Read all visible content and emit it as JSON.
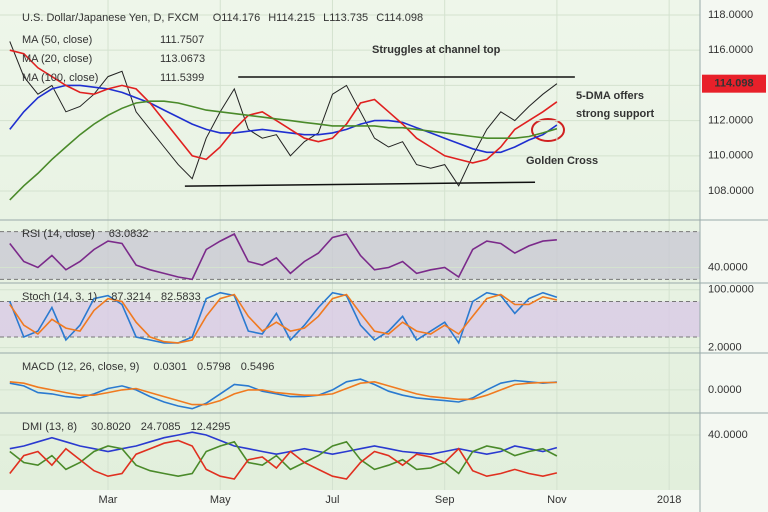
{
  "chart_data": [
    {
      "type": "line",
      "title": "U.S. Dollar/Japanese Yen, D, FXCM",
      "ohlc": [
        "O114.176",
        "H114.215",
        "L113.735",
        "C114.098"
      ],
      "x": [
        1.25,
        1.5,
        1.75,
        2,
        2.25,
        2.5,
        2.75,
        3,
        3.25,
        3.5,
        3.75,
        4,
        4.25,
        4.5,
        4.75,
        5,
        5.25,
        5.5,
        5.75,
        6,
        6.25,
        6.5,
        6.75,
        7,
        7.25,
        7.5,
        7.75,
        8,
        8.25,
        8.5,
        8.75,
        9,
        9.25,
        9.5,
        9.75,
        10,
        10.25,
        10.5,
        10.75,
        11
      ],
      "xlim": [
        1.075,
        13.55
      ],
      "xticks": [
        {
          "value": 3,
          "label": "Mar"
        },
        {
          "value": 5,
          "label": "May"
        },
        {
          "value": 7,
          "label": "Jul"
        },
        {
          "value": 9,
          "label": "Sep"
        },
        {
          "value": 11,
          "label": "Nov"
        },
        {
          "value": 13,
          "label": "2018"
        }
      ],
      "ylim": [
        106.64,
        118.85
      ],
      "yticks": [
        {
          "value": 108,
          "label": "108.0000"
        },
        {
          "value": 110,
          "label": "110.0000"
        },
        {
          "value": 112,
          "label": "112.0000"
        },
        {
          "value": 114,
          "label": "114.0000"
        },
        {
          "value": 116,
          "label": "116.0000"
        },
        {
          "value": 118,
          "label": "118.0000"
        }
      ],
      "series": [
        {
          "name": "Close",
          "color": "#222222",
          "values": [
            116.5,
            114.5,
            113.5,
            114,
            112.5,
            112.8,
            113.5,
            114.5,
            114.8,
            112.5,
            111.5,
            110.5,
            109.5,
            108.7,
            111,
            112.5,
            113.8,
            111.5,
            111,
            111.2,
            110,
            110.8,
            111.3,
            113.5,
            114,
            112.5,
            111,
            110.5,
            110.8,
            109.5,
            109.3,
            109.5,
            108.3,
            110,
            111.5,
            112.5,
            112,
            112.8,
            113.5,
            114.098
          ]
        },
        {
          "name": "MA (50, close)",
          "color": "#1f2fd0",
          "legend_value": "111.7507",
          "values": [
            111.5,
            112.5,
            113.3,
            113.8,
            114,
            114,
            113.9,
            113.8,
            113.6,
            113.3,
            113,
            112.6,
            112.2,
            111.8,
            111.5,
            111.3,
            111.3,
            111.4,
            111.5,
            111.4,
            111.3,
            111.2,
            111.2,
            111.3,
            111.5,
            111.8,
            112,
            112,
            111.9,
            111.6,
            111.3,
            111,
            110.7,
            110.4,
            110.2,
            110.2,
            110.5,
            110.9,
            111.2,
            111.7507
          ]
        },
        {
          "name": "MA (20, close)",
          "color": "#e02020",
          "legend_value": "113.0673",
          "values": [
            116,
            115.8,
            115,
            114.5,
            114,
            113.6,
            113.5,
            113.8,
            114,
            113.8,
            113,
            112,
            111,
            110,
            109.8,
            110.5,
            111.5,
            112.3,
            112.5,
            112,
            111.5,
            111,
            110.8,
            111,
            111.8,
            113,
            113.2,
            112.5,
            111.8,
            111,
            110.5,
            110,
            109.8,
            109.6,
            109.8,
            110.5,
            111.5,
            112,
            112.5,
            113.0673
          ]
        },
        {
          "name": "MA (100, close)",
          "color": "#4a8a2a",
          "legend_value": "111.5399",
          "values": [
            107.5,
            108.3,
            109,
            109.8,
            110.5,
            111.2,
            111.8,
            112.3,
            112.7,
            113,
            113.1,
            113.1,
            113,
            112.8,
            112.6,
            112.5,
            112.4,
            112.3,
            112.2,
            112.1,
            112,
            111.9,
            111.8,
            111.7,
            111.7,
            111.7,
            111.7,
            111.6,
            111.6,
            111.5,
            111.4,
            111.3,
            111.2,
            111.1,
            111,
            111,
            111,
            111.1,
            111.3,
            111.5399
          ]
        }
      ],
      "trendlines": [
        {
          "x": [
            5.32,
            11.32
          ],
          "values": [
            114.48,
            114.48
          ]
        },
        {
          "x": [
            4.37,
            10.61
          ],
          "values": [
            108.28,
            108.5
          ]
        }
      ],
      "price_label": 114.098,
      "annotations": [
        "Struggles at channel top",
        "5-DMA offers strong support",
        "Golden Cross"
      ]
    },
    {
      "type": "line",
      "title": "RSI (14, close)",
      "x": [
        1.25,
        1.5,
        1.75,
        2,
        2.25,
        2.5,
        2.75,
        3,
        3.25,
        3.5,
        3.75,
        4,
        4.25,
        4.5,
        4.75,
        5,
        5.25,
        5.5,
        5.75,
        6,
        6.25,
        6.5,
        6.75,
        7,
        7.25,
        7.5,
        7.75,
        8,
        8.25,
        8.5,
        8.75,
        9,
        9.25,
        9.5,
        9.75,
        10,
        10.25,
        10.5,
        10.75,
        11
      ],
      "ylim": [
        27,
        78
      ],
      "yticks": [
        {
          "value": 40,
          "label": "40.0000"
        }
      ],
      "levels": [
        30,
        70
      ],
      "band_color": "#c9c9d3",
      "series": [
        {
          "name": "RSI",
          "color": "#7b2a8a",
          "legend_value": "63.0832",
          "values": [
            60,
            45,
            40,
            50,
            38,
            45,
            55,
            62,
            60,
            42,
            38,
            35,
            32,
            30,
            55,
            62,
            68,
            45,
            42,
            48,
            35,
            45,
            52,
            65,
            68,
            50,
            38,
            40,
            45,
            35,
            38,
            40,
            32,
            55,
            62,
            60,
            52,
            58,
            62,
            63.0832
          ]
        }
      ]
    },
    {
      "type": "line",
      "title": "Stoch (14, 3, 1)",
      "x": [
        1.25,
        1.5,
        1.75,
        2,
        2.25,
        2.5,
        2.75,
        3,
        3.25,
        3.5,
        3.75,
        4,
        4.25,
        4.5,
        4.75,
        5,
        5.25,
        5.5,
        5.75,
        6,
        6.25,
        6.5,
        6.75,
        7,
        7.25,
        7.5,
        7.75,
        8,
        8.25,
        8.5,
        8.75,
        9,
        9.25,
        9.5,
        9.75,
        10,
        10.25,
        10.5,
        10.75,
        11
      ],
      "ylim": [
        -2,
        108
      ],
      "yticks": [
        {
          "value": 2,
          "label": "2.0000"
        },
        {
          "value": 100,
          "label": "100.0000"
        }
      ],
      "levels": [
        20,
        80
      ],
      "band_color": "#d9c9e6",
      "series": [
        {
          "name": "%K",
          "color": "#2a7ad0",
          "legend_value": "87.3214",
          "values": [
            80,
            20,
            30,
            70,
            15,
            40,
            85,
            90,
            75,
            20,
            15,
            10,
            10,
            20,
            85,
            95,
            90,
            30,
            25,
            60,
            15,
            40,
            70,
            95,
            90,
            40,
            15,
            30,
            55,
            15,
            30,
            45,
            10,
            80,
            95,
            90,
            60,
            85,
            95,
            87.3214
          ]
        },
        {
          "name": "%D",
          "color": "#f07a20",
          "legend_value": "82.5833",
          "values": [
            75,
            40,
            25,
            50,
            35,
            30,
            65,
            85,
            80,
            45,
            20,
            12,
            10,
            15,
            55,
            85,
            92,
            55,
            30,
            45,
            30,
            35,
            55,
            85,
            92,
            60,
            30,
            25,
            45,
            30,
            25,
            40,
            25,
            55,
            85,
            92,
            75,
            75,
            88,
            82.5833
          ]
        }
      ]
    },
    {
      "type": "line",
      "title": "MACD (12, 26, close, 9)",
      "x": [
        1.25,
        1.5,
        1.75,
        2,
        2.25,
        2.5,
        2.75,
        3,
        3.25,
        3.5,
        3.75,
        4,
        4.25,
        4.5,
        4.75,
        5,
        5.25,
        5.5,
        5.75,
        6,
        6.25,
        6.5,
        6.75,
        7,
        7.25,
        7.5,
        7.75,
        8,
        8.25,
        8.5,
        8.75,
        9,
        9.25,
        9.5,
        9.75,
        10,
        10.25,
        10.5,
        10.75,
        11
      ],
      "ylim": [
        -1.5,
        2.6
      ],
      "yticks": [
        {
          "value": 0,
          "label": "0.0000"
        }
      ],
      "header_values": [
        {
          "text": "0.0301",
          "color": "#c0203a"
        }
      ],
      "series": [
        {
          "name": "MACD",
          "color": "#2a7ad0",
          "legend_value": "0.5798",
          "values": [
            0.5,
            0.3,
            -0.2,
            -0.3,
            -0.5,
            -0.6,
            -0.3,
            0.1,
            0.3,
            0,
            -0.5,
            -0.9,
            -1.2,
            -1.4,
            -1,
            -0.3,
            0.4,
            0.3,
            -0.1,
            -0.3,
            -0.5,
            -0.5,
            -0.4,
            0,
            0.6,
            0.8,
            0.4,
            -0.1,
            -0.4,
            -0.6,
            -0.7,
            -0.8,
            -0.9,
            -0.6,
            0,
            0.5,
            0.7,
            0.6,
            0.5,
            0.5798
          ]
        },
        {
          "name": "Signal",
          "color": "#f07a20",
          "legend_value": "0.5496",
          "values": [
            0.6,
            0.5,
            0.2,
            0,
            -0.2,
            -0.4,
            -0.4,
            -0.2,
            0,
            0.1,
            -0.2,
            -0.5,
            -0.8,
            -1.1,
            -1.1,
            -0.8,
            -0.3,
            0,
            0,
            -0.2,
            -0.3,
            -0.4,
            -0.4,
            -0.3,
            0.1,
            0.5,
            0.6,
            0.3,
            0,
            -0.3,
            -0.5,
            -0.6,
            -0.7,
            -0.7,
            -0.4,
            0,
            0.4,
            0.5,
            0.55,
            0.5496
          ]
        }
      ]
    },
    {
      "type": "line",
      "title": "DMI (13, 8)",
      "x": [
        1.25,
        1.5,
        1.75,
        2,
        2.25,
        2.5,
        2.75,
        3,
        3.25,
        3.5,
        3.75,
        4,
        4.25,
        4.5,
        4.75,
        5,
        5.25,
        5.5,
        5.75,
        6,
        6.25,
        6.5,
        6.75,
        7,
        7.25,
        7.5,
        7.75,
        8,
        8.25,
        8.5,
        8.75,
        9,
        9.25,
        9.5,
        9.75,
        10,
        10.25,
        10.5,
        10.75,
        11
      ],
      "ylim": [
        0,
        54.5
      ],
      "yticks": [
        {
          "value": 40,
          "label": "40.0000"
        }
      ],
      "series": [
        {
          "name": "ADX",
          "color": "#2a3ad0",
          "legend_value": "30.8020",
          "values": [
            30,
            32,
            35,
            38,
            35,
            32,
            30,
            28,
            30,
            32,
            35,
            38,
            40,
            42,
            40,
            36,
            32,
            30,
            28,
            26,
            28,
            30,
            28,
            26,
            28,
            30,
            32,
            30,
            28,
            27,
            26,
            28,
            30,
            28,
            26,
            28,
            32,
            30,
            28,
            30.802
          ]
        },
        {
          "name": "+DI",
          "color": "#4a8a2a",
          "legend_value": "24.7085",
          "values": [
            28,
            20,
            18,
            25,
            15,
            20,
            28,
            32,
            30,
            18,
            14,
            12,
            10,
            12,
            28,
            32,
            35,
            20,
            18,
            25,
            15,
            20,
            25,
            32,
            35,
            22,
            15,
            18,
            22,
            15,
            16,
            20,
            12,
            28,
            32,
            30,
            25,
            28,
            30,
            24.7085
          ]
        },
        {
          "name": "-DI",
          "color": "#e03020",
          "legend_value": "12.4295",
          "values": [
            12,
            25,
            28,
            18,
            30,
            22,
            14,
            10,
            12,
            26,
            30,
            34,
            36,
            32,
            15,
            10,
            8,
            22,
            24,
            16,
            28,
            20,
            15,
            10,
            8,
            20,
            28,
            25,
            18,
            26,
            24,
            20,
            30,
            14,
            10,
            12,
            15,
            12,
            10,
            12.4295
          ]
        }
      ]
    }
  ]
}
